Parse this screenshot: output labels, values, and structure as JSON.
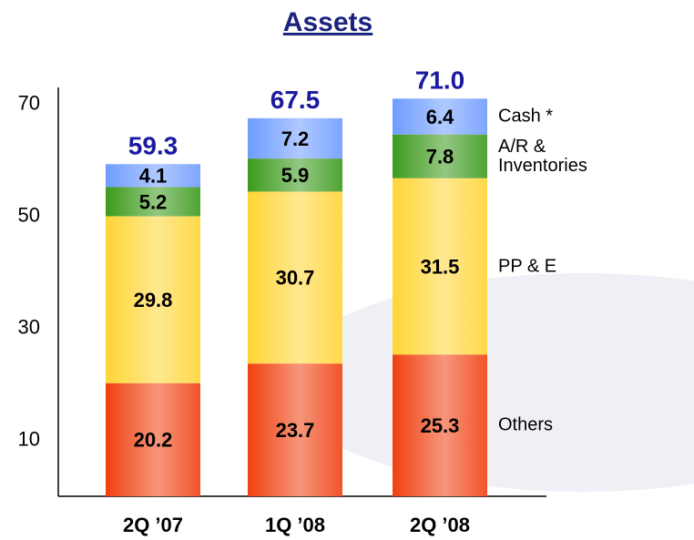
{
  "chart_data": {
    "type": "stacked_bar",
    "title": "Assets",
    "categories": [
      "2Q ’07",
      "1Q ’08",
      "2Q ’08"
    ],
    "series": [
      {
        "name": "Others",
        "color": "#f04010",
        "values": [
          20.2,
          23.7,
          25.3
        ]
      },
      {
        "name": "PP & E",
        "color": "#ffd535",
        "values": [
          29.8,
          30.7,
          31.5
        ]
      },
      {
        "name": "A/R & Inventories",
        "color": "#3c9a1c",
        "values": [
          5.2,
          5.9,
          7.8
        ]
      },
      {
        "name": "Cash *",
        "color": "#6f9cff",
        "values": [
          4.1,
          7.2,
          6.4
        ]
      }
    ],
    "totals": {
      "values": [
        59.3,
        67.5,
        71.0
      ],
      "value_labels": [
        "59.3",
        "67.5",
        "71.0"
      ]
    },
    "ylim": [
      0,
      73
    ],
    "yticks": [
      10,
      30,
      50,
      70
    ],
    "grid": false
  }
}
